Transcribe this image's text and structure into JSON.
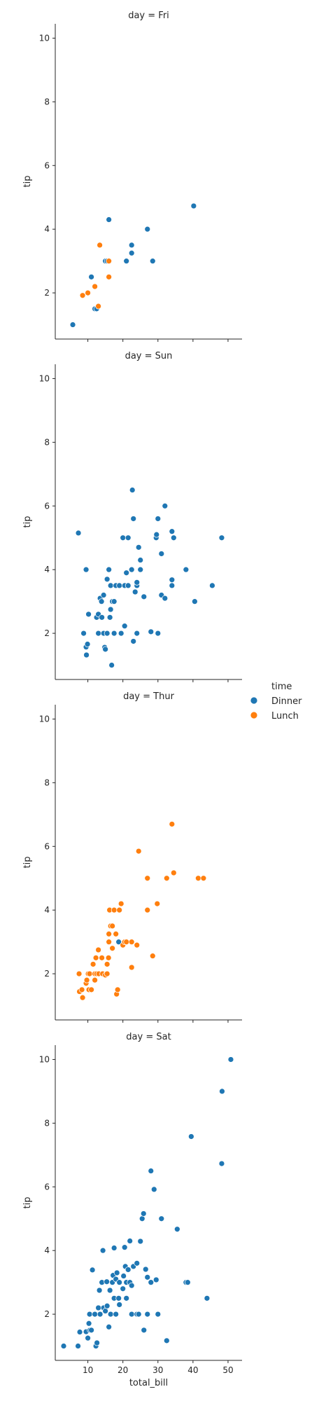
{
  "chart_data": {
    "type": "scatter",
    "facet_by": "day",
    "hue": "time",
    "xlabel": "total_bill",
    "ylabel": "tip",
    "xlim": [
      0.7,
      54.0
    ],
    "ylim": [
      0.55,
      10.45
    ],
    "xticks": [
      10,
      20,
      30,
      40,
      50
    ],
    "yticks": [
      2,
      4,
      6,
      8,
      10
    ],
    "grid": false,
    "legend": {
      "title": "time",
      "position": "right",
      "entries": [
        {
          "name": "Dinner",
          "color": "#1f77b4"
        },
        {
          "name": "Lunch",
          "color": "#ff7f0e"
        }
      ]
    },
    "facets": [
      {
        "title": "day = Fri",
        "series": [
          {
            "name": "Dinner",
            "points": [
              [
                5.7,
                1.0
              ],
              [
                11.0,
                2.5
              ],
              [
                12.0,
                1.5
              ],
              [
                12.5,
                1.5
              ],
              [
                15.0,
                3.0
              ],
              [
                16.0,
                4.3
              ],
              [
                15.5,
                3.0
              ],
              [
                21.0,
                3.0
              ],
              [
                22.5,
                3.5
              ],
              [
                22.5,
                3.25
              ],
              [
                27.0,
                4.0
              ],
              [
                28.5,
                3.0
              ],
              [
                40.2,
                4.73
              ]
            ]
          },
          {
            "name": "Lunch",
            "points": [
              [
                8.5,
                1.92
              ],
              [
                10.0,
                2.0
              ],
              [
                12.0,
                2.2
              ],
              [
                13.0,
                1.58
              ],
              [
                13.4,
                3.5
              ],
              [
                16.0,
                2.5
              ],
              [
                16.0,
                3.0
              ]
            ]
          }
        ]
      },
      {
        "title": "day = Sun",
        "series": [
          {
            "name": "Dinner",
            "points": [
              [
                7.3,
                5.15
              ],
              [
                8.8,
                2.0
              ],
              [
                9.5,
                4.0
              ],
              [
                9.6,
                1.32
              ],
              [
                9.5,
                1.57
              ],
              [
                9.9,
                1.66
              ],
              [
                10.2,
                2.6
              ],
              [
                12.5,
                2.5
              ],
              [
                13.0,
                2.6
              ],
              [
                13.0,
                2.0
              ],
              [
                13.5,
                3.1
              ],
              [
                13.9,
                3.0
              ],
              [
                14.0,
                2.5
              ],
              [
                14.5,
                3.2
              ],
              [
                14.5,
                2.0
              ],
              [
                14.8,
                1.56
              ],
              [
                15.0,
                1.5
              ],
              [
                15.5,
                2.0
              ],
              [
                15.5,
                3.7
              ],
              [
                16.0,
                4.0
              ],
              [
                16.3,
                2.5
              ],
              [
                16.5,
                2.75
              ],
              [
                16.5,
                3.5
              ],
              [
                17.0,
                3.0
              ],
              [
                16.8,
                1.0
              ],
              [
                17.5,
                3.0
              ],
              [
                17.5,
                2.0
              ],
              [
                18.0,
                3.5
              ],
              [
                19.0,
                3.5
              ],
              [
                19.5,
                2.0
              ],
              [
                20.0,
                5.0
              ],
              [
                20.5,
                2.23
              ],
              [
                20.5,
                3.5
              ],
              [
                21.0,
                3.9
              ],
              [
                21.5,
                3.5
              ],
              [
                21.5,
                5.0
              ],
              [
                22.5,
                4.0
              ],
              [
                22.7,
                6.5
              ],
              [
                23.0,
                5.6
              ],
              [
                23.0,
                1.75
              ],
              [
                23.5,
                3.3
              ],
              [
                24.0,
                3.5
              ],
              [
                24.0,
                2.0
              ],
              [
                24.0,
                3.6
              ],
              [
                24.5,
                4.7
              ],
              [
                25.0,
                4.3
              ],
              [
                25.0,
                4.0
              ],
              [
                26.0,
                3.15
              ],
              [
                28.0,
                2.05
              ],
              [
                29.5,
                5.0
              ],
              [
                29.6,
                5.1
              ],
              [
                30.0,
                5.6
              ],
              [
                30.0,
                2.0
              ],
              [
                31.0,
                3.2
              ],
              [
                31.0,
                4.5
              ],
              [
                32.0,
                3.1
              ],
              [
                32.0,
                6.0
              ],
              [
                34.0,
                3.5
              ],
              [
                34.0,
                5.2
              ],
              [
                34.0,
                3.68
              ],
              [
                34.5,
                5.0
              ],
              [
                38.0,
                4.0
              ],
              [
                40.5,
                3.0
              ],
              [
                45.5,
                3.5
              ],
              [
                48.2,
                5.0
              ]
            ]
          },
          {
            "name": "Lunch",
            "points": []
          }
        ]
      },
      {
        "title": "day = Thur",
        "series": [
          {
            "name": "Dinner",
            "points": [
              [
                18.8,
                3.0
              ]
            ]
          },
          {
            "name": "Lunch",
            "points": [
              [
                7.5,
                2.0
              ],
              [
                7.6,
                1.44
              ],
              [
                8.3,
                1.5
              ],
              [
                8.5,
                1.25
              ],
              [
                9.5,
                1.7
              ],
              [
                9.7,
                1.8
              ],
              [
                10.1,
                2.0
              ],
              [
                10.3,
                1.5
              ],
              [
                10.5,
                2.0
              ],
              [
                11.0,
                1.5
              ],
              [
                11.5,
                2.3
              ],
              [
                12.0,
                2.0
              ],
              [
                12.0,
                1.8
              ],
              [
                12.3,
                2.5
              ],
              [
                12.5,
                2.0
              ],
              [
                13.0,
                2.75
              ],
              [
                13.1,
                2.0
              ],
              [
                14.0,
                2.5
              ],
              [
                14.2,
                2.0
              ],
              [
                15.0,
                1.96
              ],
              [
                15.5,
                2.0
              ],
              [
                15.5,
                2.3
              ],
              [
                15.9,
                2.5
              ],
              [
                16.0,
                3.0
              ],
              [
                16.0,
                3.25
              ],
              [
                16.2,
                4.0
              ],
              [
                16.5,
                3.5
              ],
              [
                17.0,
                2.8
              ],
              [
                17.0,
                3.5
              ],
              [
                17.5,
                4.0
              ],
              [
                18.0,
                3.25
              ],
              [
                18.2,
                1.36
              ],
              [
                18.5,
                1.5
              ],
              [
                19.0,
                4.0
              ],
              [
                19.5,
                4.2
              ],
              [
                20.0,
                2.9
              ],
              [
                20.5,
                3.0
              ],
              [
                21.0,
                3.0
              ],
              [
                22.5,
                3.0
              ],
              [
                22.5,
                2.2
              ],
              [
                24.0,
                2.9
              ],
              [
                24.5,
                5.85
              ],
              [
                27.0,
                5.0
              ],
              [
                27.0,
                4.0
              ],
              [
                28.5,
                2.56
              ],
              [
                29.8,
                4.2
              ],
              [
                32.5,
                5.0
              ],
              [
                34.0,
                6.7
              ],
              [
                34.5,
                5.17
              ],
              [
                41.5,
                5.0
              ],
              [
                43.0,
                5.0
              ]
            ]
          }
        ]
      },
      {
        "title": "day = Sat",
        "series": [
          {
            "name": "Dinner",
            "points": [
              [
                3.1,
                1.0
              ],
              [
                7.2,
                1.0
              ],
              [
                7.7,
                1.44
              ],
              [
                9.5,
                1.45
              ],
              [
                10.0,
                1.25
              ],
              [
                10.3,
                1.71
              ],
              [
                10.6,
                1.5
              ],
              [
                10.5,
                2.0
              ],
              [
                11.0,
                1.5
              ],
              [
                11.3,
                3.39
              ],
              [
                12.0,
                2.0
              ],
              [
                12.3,
                1.0
              ],
              [
                12.6,
                1.1
              ],
              [
                13.0,
                2.2
              ],
              [
                13.3,
                2.75
              ],
              [
                13.5,
                2.0
              ],
              [
                14.0,
                3.0
              ],
              [
                14.3,
                4.0
              ],
              [
                14.5,
                2.2
              ],
              [
                15.0,
                2.1
              ],
              [
                15.4,
                3.02
              ],
              [
                15.5,
                2.26
              ],
              [
                16.0,
                1.6
              ],
              [
                16.3,
                2.75
              ],
              [
                16.5,
                2.0
              ],
              [
                17.0,
                3.0
              ],
              [
                17.2,
                3.22
              ],
              [
                17.5,
                2.5
              ],
              [
                17.5,
                4.08
              ],
              [
                18.0,
                2.0
              ],
              [
                18.0,
                3.1
              ],
              [
                18.3,
                3.3
              ],
              [
                18.8,
                2.5
              ],
              [
                19.0,
                3.0
              ],
              [
                19.0,
                2.3
              ],
              [
                20.0,
                2.8
              ],
              [
                20.2,
                3.2
              ],
              [
                20.5,
                4.1
              ],
              [
                20.7,
                3.5
              ],
              [
                21.0,
                3.0
              ],
              [
                21.0,
                2.5
              ],
              [
                21.5,
                3.4
              ],
              [
                22.0,
                3.0
              ],
              [
                22.0,
                4.3
              ],
              [
                22.5,
                2.9
              ],
              [
                22.5,
                2.0
              ],
              [
                23.0,
                3.5
              ],
              [
                24.0,
                2.0
              ],
              [
                24.0,
                3.6
              ],
              [
                24.5,
                2.0
              ],
              [
                25.0,
                4.29
              ],
              [
                25.5,
                5.0
              ],
              [
                25.9,
                5.16
              ],
              [
                26.0,
                1.5
              ],
              [
                26.5,
                3.41
              ],
              [
                27.0,
                2.0
              ],
              [
                27.0,
                3.16
              ],
              [
                28.0,
                6.5
              ],
              [
                28.0,
                3.0
              ],
              [
                28.9,
                5.92
              ],
              [
                29.5,
                3.08
              ],
              [
                30.0,
                2.0
              ],
              [
                31.0,
                5.0
              ],
              [
                32.5,
                1.17
              ],
              [
                35.5,
                4.67
              ],
              [
                38.0,
                3.0
              ],
              [
                38.5,
                3.0
              ],
              [
                39.5,
                7.58
              ],
              [
                44.0,
                2.5
              ],
              [
                48.3,
                9.0
              ],
              [
                48.2,
                6.73
              ],
              [
                50.8,
                10.0
              ]
            ]
          },
          {
            "name": "Lunch",
            "points": []
          }
        ]
      }
    ]
  }
}
